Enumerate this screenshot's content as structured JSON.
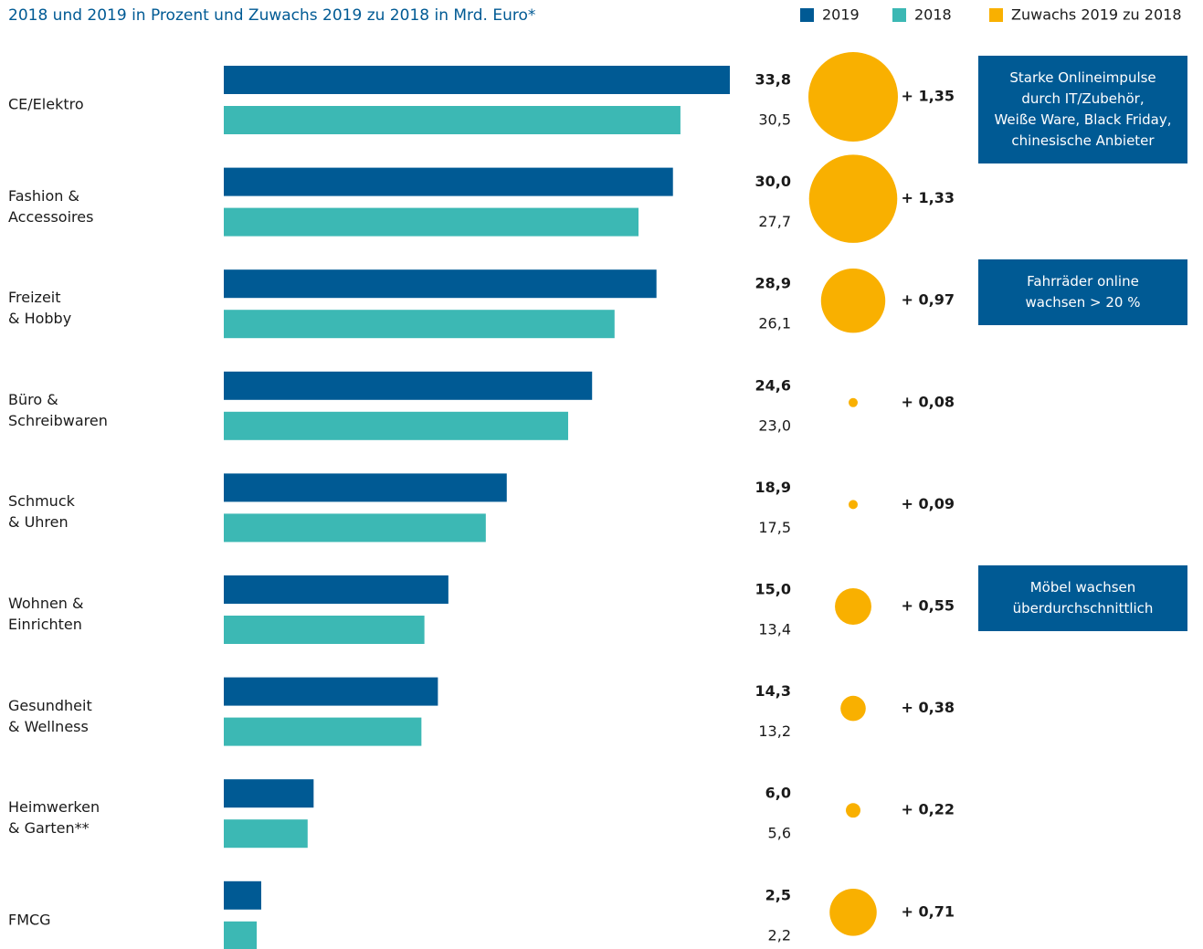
{
  "chart_data": {
    "type": "bar",
    "subtitle": "2018 und 2019 in Prozent und Zuwachs 2019 zu 2018 in Mrd. Euro*",
    "categories": [
      "CE/Elektro",
      "Fashion &\nAccessoires",
      "Freizeit\n& Hobby",
      "Büro &\nSchreibwaren",
      "Schmuck\n& Uhren",
      "Wohnen &\nEinrichten",
      "Gesundheit\n& Wellness",
      "Heimwerken\n& Garten**",
      "FMCG"
    ],
    "series": [
      {
        "name": "2019",
        "color": "#005a94",
        "values": [
          33.8,
          30.0,
          28.9,
          24.6,
          18.9,
          15.0,
          14.3,
          6.0,
          2.5
        ],
        "value_labels": [
          "33,8",
          "30,0",
          "28,9",
          "24,6",
          "18,9",
          "15,0",
          "14,3",
          "6,0",
          "2,5"
        ]
      },
      {
        "name": "2018",
        "color": "#3cb8b4",
        "values": [
          30.5,
          27.7,
          26.1,
          23.0,
          17.5,
          13.4,
          13.2,
          5.6,
          2.2
        ],
        "value_labels": [
          "30,5",
          "27,7",
          "26,1",
          "23,0",
          "17,5",
          "13,4",
          "13,2",
          "5,6",
          "2,2"
        ]
      }
    ],
    "growth": {
      "name": "Zuwachs 2019 zu 2018",
      "color": "#f9b000",
      "values": [
        1.35,
        1.33,
        0.97,
        0.08,
        0.09,
        0.55,
        0.38,
        0.22,
        0.71
      ],
      "value_labels": [
        "+ 1,35",
        "+ 1,33",
        "+ 0,97",
        "+ 0,08",
        "+ 0,09",
        "+ 0,55",
        "+ 0,38",
        "+ 0,22",
        "+ 0,71"
      ]
    },
    "notes": [
      "Starke Onlineimpulse\ndurch IT/Zubehör,\nWeiße Ware, Black Friday,\nchinesische Anbieter",
      null,
      "Fahrräder online\nwachsen > 20 %",
      null,
      null,
      "Möbel wachsen\nüberdurchschnittlich",
      null,
      null,
      null
    ]
  }
}
